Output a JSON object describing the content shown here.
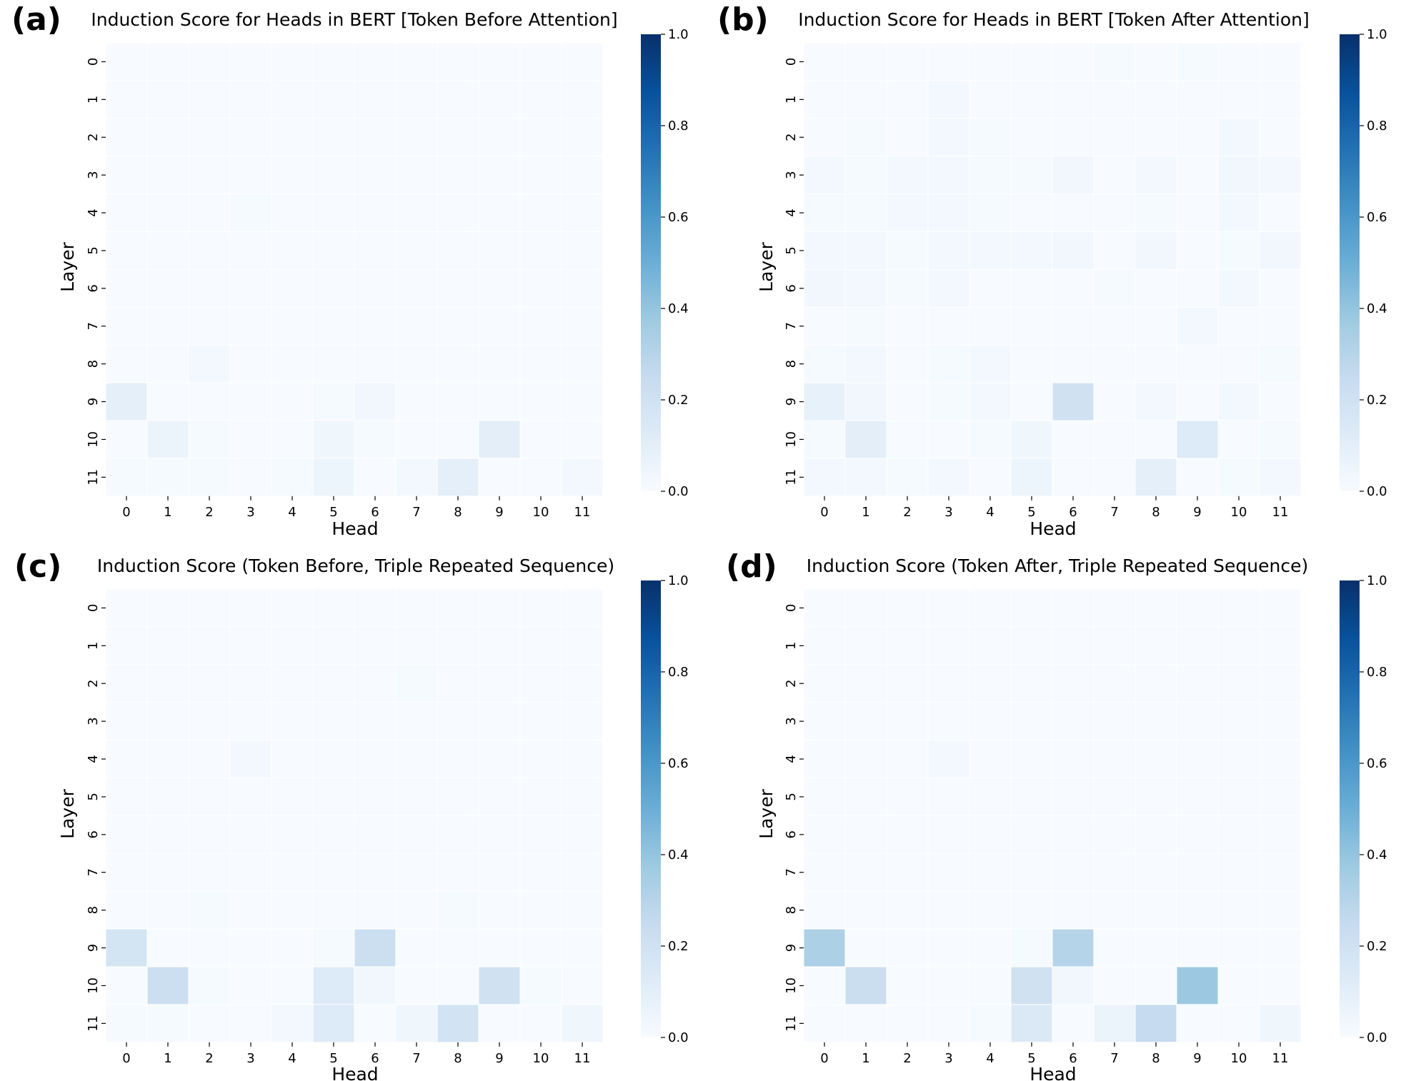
{
  "chart_data": [
    {
      "type": "heatmap",
      "panel_label": "(a)",
      "title": "Induction Score for Heads in BERT [Token Before Attention]",
      "xlabel": "Head",
      "ylabel": "Layer",
      "x_ticks": [
        "0",
        "1",
        "2",
        "3",
        "4",
        "5",
        "6",
        "7",
        "8",
        "9",
        "10",
        "11"
      ],
      "y_ticks": [
        "0",
        "1",
        "2",
        "3",
        "4",
        "5",
        "6",
        "7",
        "8",
        "9",
        "10",
        "11"
      ],
      "colorbar": {
        "range": [
          0,
          1
        ],
        "ticks": [
          "0.0",
          "0.2",
          "0.4",
          "0.6",
          "0.8",
          "1.0"
        ],
        "colormap": "Blues"
      },
      "values": [
        [
          0.0,
          0.0,
          0.0,
          0.0,
          0.0,
          0.0,
          0.0,
          0.0,
          0.0,
          0.0,
          0.0,
          0.0
        ],
        [
          0.0,
          0.0,
          0.0,
          0.0,
          0.0,
          0.0,
          0.0,
          0.0,
          0.0,
          0.0,
          0.0,
          0.0
        ],
        [
          0.0,
          0.0,
          0.0,
          0.0,
          0.0,
          0.0,
          0.0,
          0.0,
          0.0,
          0.0,
          0.0,
          0.0
        ],
        [
          0.0,
          0.0,
          0.0,
          0.0,
          0.0,
          0.0,
          0.0,
          0.0,
          0.0,
          0.0,
          0.0,
          0.0
        ],
        [
          0.0,
          0.0,
          0.0,
          0.01,
          0.0,
          0.0,
          0.0,
          0.0,
          0.0,
          0.0,
          0.0,
          0.0
        ],
        [
          0.0,
          0.0,
          0.0,
          0.0,
          0.0,
          0.0,
          0.0,
          0.0,
          0.0,
          0.0,
          0.0,
          0.0
        ],
        [
          0.0,
          0.0,
          0.0,
          0.0,
          0.0,
          0.0,
          0.0,
          0.0,
          0.0,
          0.0,
          0.0,
          0.0
        ],
        [
          0.0,
          0.0,
          0.0,
          0.0,
          0.0,
          0.0,
          0.0,
          0.0,
          0.0,
          0.0,
          0.0,
          0.0
        ],
        [
          0.0,
          0.0,
          0.02,
          0.0,
          0.0,
          0.0,
          0.0,
          0.0,
          0.0,
          0.0,
          0.0,
          0.0
        ],
        [
          0.09,
          0.0,
          0.0,
          0.0,
          0.0,
          0.01,
          0.03,
          0.0,
          0.0,
          0.0,
          0.0,
          0.0
        ],
        [
          0.0,
          0.06,
          0.01,
          0.0,
          0.0,
          0.04,
          0.01,
          0.0,
          0.0,
          0.1,
          0.0,
          0.0
        ],
        [
          0.01,
          0.01,
          0.01,
          0.0,
          0.01,
          0.05,
          0.0,
          0.02,
          0.09,
          0.0,
          0.0,
          0.02
        ]
      ]
    },
    {
      "type": "heatmap",
      "panel_label": "(b)",
      "title": "Induction Score for Heads in BERT [Token After Attention]",
      "xlabel": "Head",
      "ylabel": "Layer",
      "x_ticks": [
        "0",
        "1",
        "2",
        "3",
        "4",
        "5",
        "6",
        "7",
        "8",
        "9",
        "10",
        "11"
      ],
      "y_ticks": [
        "0",
        "1",
        "2",
        "3",
        "4",
        "5",
        "6",
        "7",
        "8",
        "9",
        "10",
        "11"
      ],
      "colorbar": {
        "range": [
          0,
          1
        ],
        "ticks": [
          "0.0",
          "0.2",
          "0.4",
          "0.6",
          "0.8",
          "1.0"
        ],
        "colormap": "Blues"
      },
      "values": [
        [
          0.0,
          0.0,
          0.0,
          0.0,
          0.0,
          0.0,
          0.0,
          0.01,
          0.0,
          0.01,
          0.0,
          0.0
        ],
        [
          0.0,
          0.0,
          0.0,
          0.02,
          0.0,
          0.0,
          0.0,
          0.0,
          0.0,
          0.0,
          0.0,
          0.0
        ],
        [
          0.0,
          0.01,
          0.0,
          0.02,
          0.01,
          0.0,
          0.0,
          0.0,
          0.0,
          0.0,
          0.02,
          0.0
        ],
        [
          0.02,
          0.01,
          0.02,
          0.02,
          0.01,
          0.01,
          0.03,
          0.0,
          0.02,
          0.0,
          0.03,
          0.02
        ],
        [
          0.01,
          0.01,
          0.02,
          0.02,
          0.01,
          0.0,
          0.0,
          0.0,
          0.01,
          0.0,
          0.02,
          0.0
        ],
        [
          0.02,
          0.02,
          0.01,
          0.02,
          0.02,
          0.02,
          0.03,
          0.0,
          0.03,
          0.0,
          0.01,
          0.03
        ],
        [
          0.03,
          0.02,
          0.01,
          0.02,
          0.0,
          0.0,
          0.0,
          0.01,
          0.0,
          0.0,
          0.02,
          0.0
        ],
        [
          0.0,
          0.01,
          0.0,
          0.0,
          0.0,
          0.0,
          0.0,
          0.0,
          0.0,
          0.02,
          0.0,
          0.0
        ],
        [
          0.01,
          0.02,
          0.0,
          0.01,
          0.02,
          0.0,
          0.0,
          0.0,
          0.0,
          0.0,
          0.0,
          0.01
        ],
        [
          0.08,
          0.03,
          0.0,
          0.01,
          0.02,
          0.0,
          0.2,
          0.0,
          0.02,
          0.0,
          0.02,
          0.0
        ],
        [
          0.01,
          0.1,
          0.0,
          0.0,
          0.01,
          0.04,
          0.0,
          0.0,
          0.0,
          0.13,
          0.0,
          0.01
        ],
        [
          0.02,
          0.02,
          0.01,
          0.02,
          0.0,
          0.05,
          0.0,
          0.0,
          0.09,
          0.0,
          0.01,
          0.02
        ]
      ]
    },
    {
      "type": "heatmap",
      "panel_label": "(c)",
      "title": "Induction Score (Token Before, Triple Repeated Sequence)",
      "xlabel": "Head",
      "ylabel": "Layer",
      "x_ticks": [
        "0",
        "1",
        "2",
        "3",
        "4",
        "5",
        "6",
        "7",
        "8",
        "9",
        "10",
        "11"
      ],
      "y_ticks": [
        "0",
        "1",
        "2",
        "3",
        "4",
        "5",
        "6",
        "7",
        "8",
        "9",
        "10",
        "11"
      ],
      "colorbar": {
        "range": [
          0,
          1
        ],
        "ticks": [
          "0.0",
          "0.2",
          "0.4",
          "0.6",
          "0.8",
          "1.0"
        ],
        "colormap": "Blues"
      },
      "values": [
        [
          0.0,
          0.0,
          0.0,
          0.0,
          0.0,
          0.0,
          0.0,
          0.0,
          0.0,
          0.0,
          0.0,
          0.0
        ],
        [
          0.0,
          0.0,
          0.0,
          0.0,
          0.0,
          0.0,
          0.0,
          0.0,
          0.0,
          0.0,
          0.0,
          0.0
        ],
        [
          0.0,
          0.0,
          0.0,
          0.0,
          0.0,
          0.0,
          0.0,
          0.01,
          0.0,
          0.0,
          0.0,
          0.0
        ],
        [
          0.0,
          0.0,
          0.0,
          0.0,
          0.0,
          0.0,
          0.0,
          0.0,
          0.0,
          0.0,
          0.0,
          0.0
        ],
        [
          0.0,
          0.0,
          0.0,
          0.02,
          0.0,
          0.0,
          0.0,
          0.0,
          0.0,
          0.0,
          0.0,
          0.0
        ],
        [
          0.0,
          0.0,
          0.0,
          0.0,
          0.0,
          0.0,
          0.0,
          0.0,
          0.0,
          0.0,
          0.0,
          0.0
        ],
        [
          0.0,
          0.0,
          0.0,
          0.0,
          0.0,
          0.0,
          0.0,
          0.0,
          0.0,
          0.0,
          0.0,
          0.0
        ],
        [
          0.0,
          0.0,
          0.0,
          0.0,
          0.0,
          0.0,
          0.0,
          0.0,
          0.0,
          0.0,
          0.0,
          0.0
        ],
        [
          0.0,
          0.0,
          0.01,
          0.0,
          0.0,
          0.0,
          0.0,
          0.0,
          0.01,
          0.0,
          0.0,
          0.0
        ],
        [
          0.18,
          0.0,
          0.0,
          0.0,
          0.0,
          0.01,
          0.22,
          0.0,
          0.0,
          0.0,
          0.0,
          0.0
        ],
        [
          0.0,
          0.22,
          0.01,
          0.0,
          0.0,
          0.13,
          0.03,
          0.0,
          0.0,
          0.2,
          0.01,
          0.0
        ],
        [
          0.01,
          0.01,
          0.0,
          0.0,
          0.02,
          0.13,
          0.0,
          0.04,
          0.19,
          0.0,
          0.0,
          0.04
        ]
      ]
    },
    {
      "type": "heatmap",
      "panel_label": "(d)",
      "title": "Induction Score (Token After, Triple Repeated Sequence)",
      "xlabel": "Head",
      "ylabel": "Layer",
      "x_ticks": [
        "0",
        "1",
        "2",
        "3",
        "4",
        "5",
        "6",
        "7",
        "8",
        "9",
        "10",
        "11"
      ],
      "y_ticks": [
        "0",
        "1",
        "2",
        "3",
        "4",
        "5",
        "6",
        "7",
        "8",
        "9",
        "10",
        "11"
      ],
      "colorbar": {
        "range": [
          0,
          1
        ],
        "ticks": [
          "0.0",
          "0.2",
          "0.4",
          "0.6",
          "0.8",
          "1.0"
        ],
        "colormap": "Blues"
      },
      "values": [
        [
          0.0,
          0.0,
          0.0,
          0.0,
          0.0,
          0.0,
          0.0,
          0.0,
          0.0,
          0.0,
          0.0,
          0.0
        ],
        [
          0.0,
          0.0,
          0.0,
          0.0,
          0.0,
          0.0,
          0.0,
          0.0,
          0.0,
          0.0,
          0.0,
          0.0
        ],
        [
          0.0,
          0.0,
          0.0,
          0.0,
          0.0,
          0.0,
          0.0,
          0.0,
          0.0,
          0.0,
          0.0,
          0.0
        ],
        [
          0.0,
          0.0,
          0.0,
          0.0,
          0.0,
          0.0,
          0.0,
          0.0,
          0.0,
          0.0,
          0.0,
          0.0
        ],
        [
          0.0,
          0.0,
          0.0,
          0.02,
          0.0,
          0.0,
          0.0,
          0.0,
          0.0,
          0.0,
          0.0,
          0.0
        ],
        [
          0.0,
          0.0,
          0.0,
          0.0,
          0.0,
          0.0,
          0.0,
          0.0,
          0.0,
          0.0,
          0.0,
          0.0
        ],
        [
          0.0,
          0.0,
          0.0,
          0.0,
          0.0,
          0.0,
          0.0,
          0.0,
          0.0,
          0.0,
          0.0,
          0.0
        ],
        [
          0.0,
          0.0,
          0.0,
          0.0,
          0.0,
          0.0,
          0.0,
          0.0,
          0.0,
          0.0,
          0.0,
          0.0
        ],
        [
          0.0,
          0.0,
          0.0,
          0.0,
          0.0,
          0.0,
          0.0,
          0.0,
          0.0,
          0.0,
          0.0,
          0.0
        ],
        [
          0.33,
          0.0,
          0.0,
          0.0,
          0.0,
          0.01,
          0.3,
          0.0,
          0.0,
          0.0,
          0.0,
          0.0
        ],
        [
          0.0,
          0.23,
          0.0,
          0.0,
          0.0,
          0.2,
          0.03,
          0.0,
          0.0,
          0.38,
          0.0,
          0.0
        ],
        [
          0.0,
          0.0,
          0.0,
          0.0,
          0.01,
          0.14,
          0.0,
          0.06,
          0.25,
          0.0,
          0.0,
          0.04
        ]
      ]
    }
  ]
}
